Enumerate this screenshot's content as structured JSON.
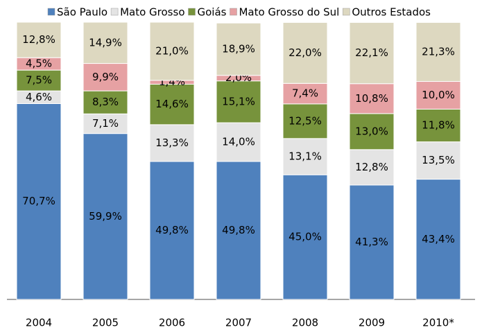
{
  "chart_data": {
    "type": "stacked-bar",
    "categories": [
      "2004",
      "2005",
      "2006",
      "2007",
      "2008",
      "2009",
      "2010*"
    ],
    "series": [
      {
        "name": "São Paulo",
        "color": "#4f81bd",
        "values": [
          70.7,
          59.9,
          49.8,
          49.8,
          45.0,
          41.3,
          43.4
        ],
        "value_labels": [
          "70,7%",
          "59,9%",
          "49,8%",
          "49,8%",
          "45,0%",
          "41,3%",
          "43,4%"
        ]
      },
      {
        "name": "Mato Grosso",
        "color": "#e4e4e4",
        "values": [
          4.6,
          7.1,
          13.3,
          14.0,
          13.1,
          12.8,
          13.5
        ],
        "value_labels": [
          "4,6%",
          "7,1%",
          "13,3%",
          "14,0%",
          "13,1%",
          "12,8%",
          "13,5%"
        ]
      },
      {
        "name": "Goiás",
        "color": "#77933c",
        "values": [
          7.5,
          8.3,
          14.6,
          15.1,
          12.5,
          13.0,
          11.8
        ],
        "value_labels": [
          "7,5%",
          "8,3%",
          "14,6%",
          "15,1%",
          "12,5%",
          "13,0%",
          "11,8%"
        ]
      },
      {
        "name": "Mato Grosso do Sul",
        "color": "#e6a1a3",
        "values": [
          4.5,
          9.9,
          1.4,
          2.0,
          7.4,
          10.8,
          10.0
        ],
        "value_labels": [
          "4,5%",
          "9,9%",
          "1,4%",
          "2,0%",
          "7,4%",
          "10,8%",
          "10,0%"
        ]
      },
      {
        "name": "Outros Estados",
        "color": "#ddd8c0",
        "values": [
          12.8,
          14.9,
          21.0,
          18.9,
          22.0,
          22.1,
          21.3
        ],
        "value_labels": [
          "12,8%",
          "14,9%",
          "21,0%",
          "18,9%",
          "22,0%",
          "22,1%",
          "21,3%"
        ]
      }
    ]
  }
}
